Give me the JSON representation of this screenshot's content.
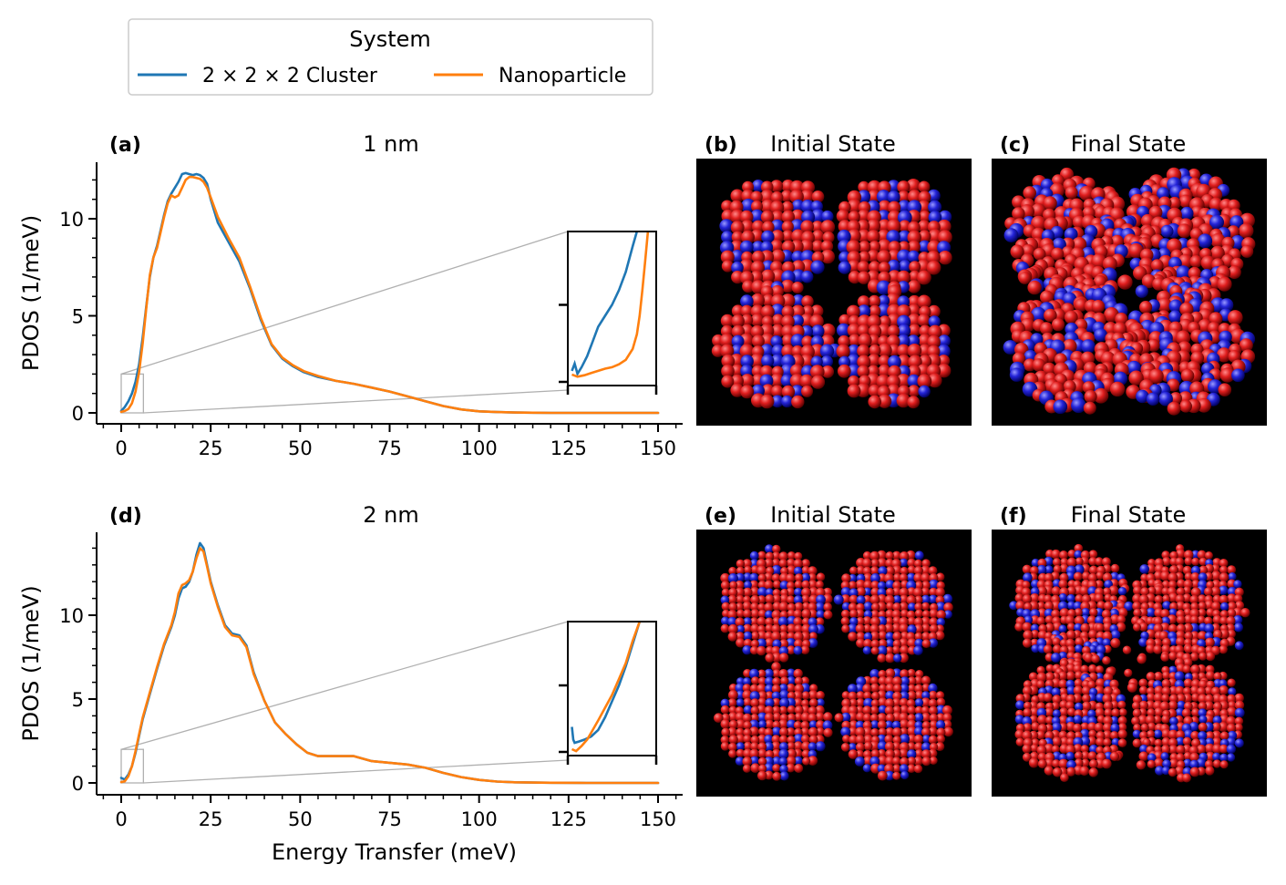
{
  "legend": {
    "title": "System",
    "entries": [
      {
        "label": "2 × 2 × 2 Cluster",
        "color": "#1f77b4"
      },
      {
        "label": "Nanoparticle",
        "color": "#ff7f0e"
      }
    ]
  },
  "panels": {
    "a": {
      "letter": "(a)",
      "title": "1 nm"
    },
    "b": {
      "letter": "(b)",
      "title": "Initial State"
    },
    "c": {
      "letter": "(c)",
      "title": "Final State"
    },
    "d": {
      "letter": "(d)",
      "title": "2 nm"
    },
    "e": {
      "letter": "(e)",
      "title": "Initial State"
    },
    "f": {
      "letter": "(f)",
      "title": "Final State"
    }
  },
  "colors": {
    "cluster": "#1f77b4",
    "nanoparticle": "#ff7f0e",
    "atom_red": "#d81f1f",
    "atom_blue": "#2020c8",
    "image_background": "#000000"
  },
  "chart_data": [
    {
      "id": "a",
      "type": "line",
      "title": "1 nm",
      "xlabel": "",
      "ylabel": "PDOS (1/meV)",
      "xlim": [
        -6,
        157
      ],
      "ylim": [
        -0.7,
        12.9
      ],
      "xticks": [
        0,
        25,
        50,
        75,
        100,
        125,
        150
      ],
      "yticks": [
        0,
        5,
        10
      ],
      "grid": false,
      "series": [
        {
          "name": "2 × 2 × 2 Cluster",
          "color": "#1f77b4",
          "x": [
            0,
            1,
            2,
            3,
            4,
            5,
            6,
            7,
            8,
            9,
            10,
            11,
            12,
            13,
            14,
            15,
            16,
            17,
            18,
            19,
            20,
            21,
            22,
            23,
            24,
            25,
            27,
            30,
            33,
            36,
            39,
            42,
            45,
            48,
            51,
            55,
            60,
            65,
            70,
            75,
            80,
            85,
            90,
            95,
            100,
            105,
            110,
            115,
            120,
            130,
            140,
            150
          ],
          "y": [
            0.1,
            0.3,
            0.6,
            1.0,
            1.6,
            2.5,
            3.9,
            5.5,
            7.0,
            8.0,
            8.6,
            9.4,
            10.2,
            10.9,
            11.3,
            11.6,
            11.9,
            12.3,
            12.35,
            12.3,
            12.25,
            12.3,
            12.25,
            12.1,
            11.8,
            11.0,
            9.8,
            8.8,
            7.8,
            6.4,
            4.8,
            3.5,
            2.8,
            2.4,
            2.1,
            1.85,
            1.65,
            1.5,
            1.3,
            1.1,
            0.85,
            0.6,
            0.35,
            0.18,
            0.08,
            0.04,
            0.02,
            0.01,
            0.0,
            0.0,
            0.0,
            0.0
          ]
        },
        {
          "name": "Nanoparticle",
          "color": "#ff7f0e",
          "x": [
            0,
            1,
            2,
            3,
            4,
            5,
            6,
            7,
            8,
            9,
            10,
            11,
            12,
            13,
            14,
            15,
            16,
            17,
            18,
            19,
            20,
            21,
            22,
            23,
            24,
            25,
            27,
            30,
            33,
            36,
            39,
            42,
            45,
            48,
            51,
            55,
            60,
            65,
            70,
            75,
            80,
            85,
            90,
            95,
            100,
            105,
            110,
            115,
            120,
            130,
            140,
            150
          ],
          "y": [
            0.05,
            0.1,
            0.2,
            0.5,
            1.1,
            2.1,
            3.6,
            5.4,
            7.1,
            8.0,
            8.5,
            9.3,
            10.1,
            10.8,
            11.2,
            11.1,
            11.2,
            11.6,
            12.0,
            12.15,
            12.15,
            12.1,
            12.05,
            11.9,
            11.6,
            11.1,
            10.1,
            9.0,
            8.0,
            6.5,
            4.9,
            3.55,
            2.85,
            2.45,
            2.15,
            1.9,
            1.65,
            1.5,
            1.3,
            1.1,
            0.85,
            0.6,
            0.35,
            0.18,
            0.08,
            0.04,
            0.02,
            0.01,
            0.0,
            0.0,
            0.0,
            0.0
          ]
        }
      ],
      "inset": {
        "xlim": [
          0,
          6.2
        ],
        "ylim": [
          -0.1,
          2.0
        ],
        "yticks": [
          1.0
        ],
        "xticks": [
          0,
          6.2
        ],
        "series": [
          {
            "name": "2 × 2 × 2 Cluster",
            "color": "#1f77b4",
            "x": [
              0.1,
              0.3,
              0.5,
              0.8,
              1.2,
              1.6,
              2.0,
              2.5,
              3.0,
              3.5,
              4.0,
              4.5,
              4.8
            ],
            "y": [
              0.1,
              0.2,
              0.06,
              0.15,
              0.3,
              0.5,
              0.7,
              0.85,
              1.0,
              1.2,
              1.45,
              1.8,
              2.0
            ]
          },
          {
            "name": "Nanoparticle",
            "color": "#ff7f0e",
            "x": [
              0.1,
              0.5,
              1.0,
              1.5,
              2.0,
              2.5,
              3.0,
              3.5,
              4.0,
              4.5,
              4.8,
              5.0,
              5.2,
              5.4,
              5.6
            ],
            "y": [
              0.05,
              0.02,
              0.04,
              0.07,
              0.1,
              0.13,
              0.15,
              0.19,
              0.25,
              0.4,
              0.6,
              0.85,
              1.2,
              1.6,
              2.0
            ]
          }
        ]
      }
    },
    {
      "id": "d",
      "type": "line",
      "title": "2 nm",
      "xlabel": "Energy Transfer (meV)",
      "ylabel": "PDOS (1/meV)",
      "xlim": [
        -6,
        157
      ],
      "ylim": [
        -0.7,
        14.9
      ],
      "xticks": [
        0,
        25,
        50,
        75,
        100,
        125,
        150
      ],
      "yticks": [
        0,
        5,
        10
      ],
      "grid": false,
      "series": [
        {
          "name": "2 × 2 × 2 Cluster",
          "color": "#1f77b4",
          "x": [
            0,
            1,
            2,
            3,
            4,
            5,
            6,
            8,
            10,
            12,
            14,
            15,
            16,
            17,
            18,
            19,
            20,
            21,
            22,
            23,
            24,
            25,
            27,
            29,
            31,
            33,
            35,
            37,
            40,
            43,
            46,
            49,
            52,
            55,
            60,
            65,
            70,
            75,
            80,
            85,
            90,
            95,
            100,
            105,
            110,
            120,
            130,
            140,
            150
          ],
          "y": [
            0.3,
            0.2,
            0.5,
            1.0,
            1.8,
            2.8,
            3.8,
            5.3,
            6.8,
            8.2,
            9.3,
            10.0,
            11.0,
            11.6,
            11.7,
            12.0,
            12.6,
            13.6,
            14.3,
            14.0,
            13.0,
            12.0,
            10.6,
            9.4,
            8.9,
            8.8,
            8.2,
            6.6,
            4.9,
            3.6,
            2.9,
            2.3,
            1.8,
            1.6,
            1.6,
            1.6,
            1.3,
            1.2,
            1.1,
            0.9,
            0.6,
            0.35,
            0.18,
            0.08,
            0.04,
            0.01,
            0.0,
            0.0,
            0.0
          ]
        },
        {
          "name": "Nanoparticle",
          "color": "#ff7f0e",
          "x": [
            0,
            1,
            2,
            3,
            4,
            5,
            6,
            8,
            10,
            12,
            14,
            15,
            16,
            17,
            18,
            19,
            20,
            21,
            22,
            23,
            24,
            25,
            27,
            29,
            31,
            33,
            35,
            37,
            40,
            43,
            46,
            49,
            52,
            55,
            60,
            65,
            70,
            75,
            80,
            85,
            90,
            95,
            100,
            105,
            110,
            120,
            130,
            140,
            150
          ],
          "y": [
            0.05,
            0.1,
            0.4,
            1.0,
            1.9,
            2.9,
            3.9,
            5.4,
            6.9,
            8.3,
            9.4,
            10.2,
            11.3,
            11.8,
            11.9,
            12.1,
            12.6,
            13.4,
            14.0,
            13.8,
            12.9,
            11.9,
            10.5,
            9.3,
            8.8,
            8.7,
            8.1,
            6.5,
            4.9,
            3.6,
            2.9,
            2.3,
            1.8,
            1.6,
            1.6,
            1.6,
            1.3,
            1.2,
            1.1,
            0.9,
            0.6,
            0.35,
            0.18,
            0.08,
            0.04,
            0.01,
            0.0,
            0.0,
            0.0
          ]
        }
      ],
      "inset": {
        "xlim": [
          0,
          6.2
        ],
        "ylim": [
          -0.1,
          2.0
        ],
        "yticks": [
          1.0
        ],
        "xticks": [
          0,
          6.2
        ],
        "series": [
          {
            "name": "2 × 2 × 2 Cluster",
            "color": "#1f77b4",
            "x": [
              0.1,
              0.2,
              0.3,
              0.6,
              1.0,
              1.5,
              2.0,
              2.5,
              3.0,
              3.5,
              4.0,
              4.5,
              5.0
            ],
            "y": [
              0.35,
              0.15,
              0.1,
              0.12,
              0.15,
              0.2,
              0.3,
              0.5,
              0.75,
              1.0,
              1.3,
              1.65,
              2.0
            ]
          },
          {
            "name": "Nanoparticle",
            "color": "#ff7f0e",
            "x": [
              0.1,
              0.4,
              0.8,
              1.2,
              1.6,
              2.0,
              2.5,
              3.0,
              3.5,
              4.0,
              4.5,
              5.0
            ],
            "y": [
              0.0,
              -0.03,
              0.05,
              0.15,
              0.3,
              0.45,
              0.65,
              0.85,
              1.1,
              1.35,
              1.7,
              2.0
            ]
          }
        ]
      }
    }
  ]
}
